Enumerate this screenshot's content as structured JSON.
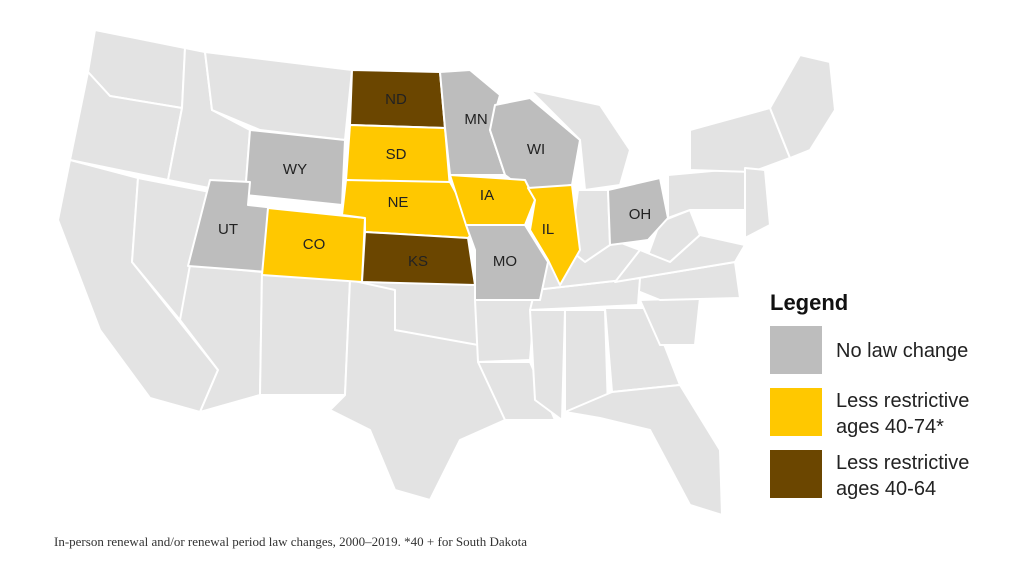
{
  "legend": {
    "title": "Legend",
    "items": [
      {
        "key": "none",
        "lines": [
          "No law change"
        ],
        "color": "#bdbdbd"
      },
      {
        "key": "less74",
        "lines": [
          "Less restrictive",
          "ages 40-74*"
        ],
        "color": "#ffc800"
      },
      {
        "key": "less64",
        "lines": [
          "Less restrictive",
          "ages 40-64"
        ],
        "color": "#6b4600"
      }
    ]
  },
  "colors": {
    "base": "#e3e3e3",
    "none": "#bdbdbd",
    "less74": "#ffc800",
    "less64": "#6b4600"
  },
  "highlighted_states": [
    {
      "code": "ND",
      "label": "ND",
      "category": "less64"
    },
    {
      "code": "SD",
      "label": "SD",
      "category": "less74"
    },
    {
      "code": "NE",
      "label": "NE",
      "category": "less74"
    },
    {
      "code": "KS",
      "label": "KS",
      "category": "less64"
    },
    {
      "code": "CO",
      "label": "CO",
      "category": "less74"
    },
    {
      "code": "WY",
      "label": "WY",
      "category": "none"
    },
    {
      "code": "UT",
      "label": "UT",
      "category": "none"
    },
    {
      "code": "MN",
      "label": "MN",
      "category": "none"
    },
    {
      "code": "WI",
      "label": "WI",
      "category": "none"
    },
    {
      "code": "IA",
      "label": "IA",
      "category": "less74"
    },
    {
      "code": "IL",
      "label": "IL",
      "category": "less74"
    },
    {
      "code": "MO",
      "label": "MO",
      "category": "none"
    },
    {
      "code": "OH",
      "label": "OH",
      "category": "none"
    }
  ],
  "caption": "In-person renewal and/or renewal period law changes, 2000–2019. *40 + for South Dakota"
}
